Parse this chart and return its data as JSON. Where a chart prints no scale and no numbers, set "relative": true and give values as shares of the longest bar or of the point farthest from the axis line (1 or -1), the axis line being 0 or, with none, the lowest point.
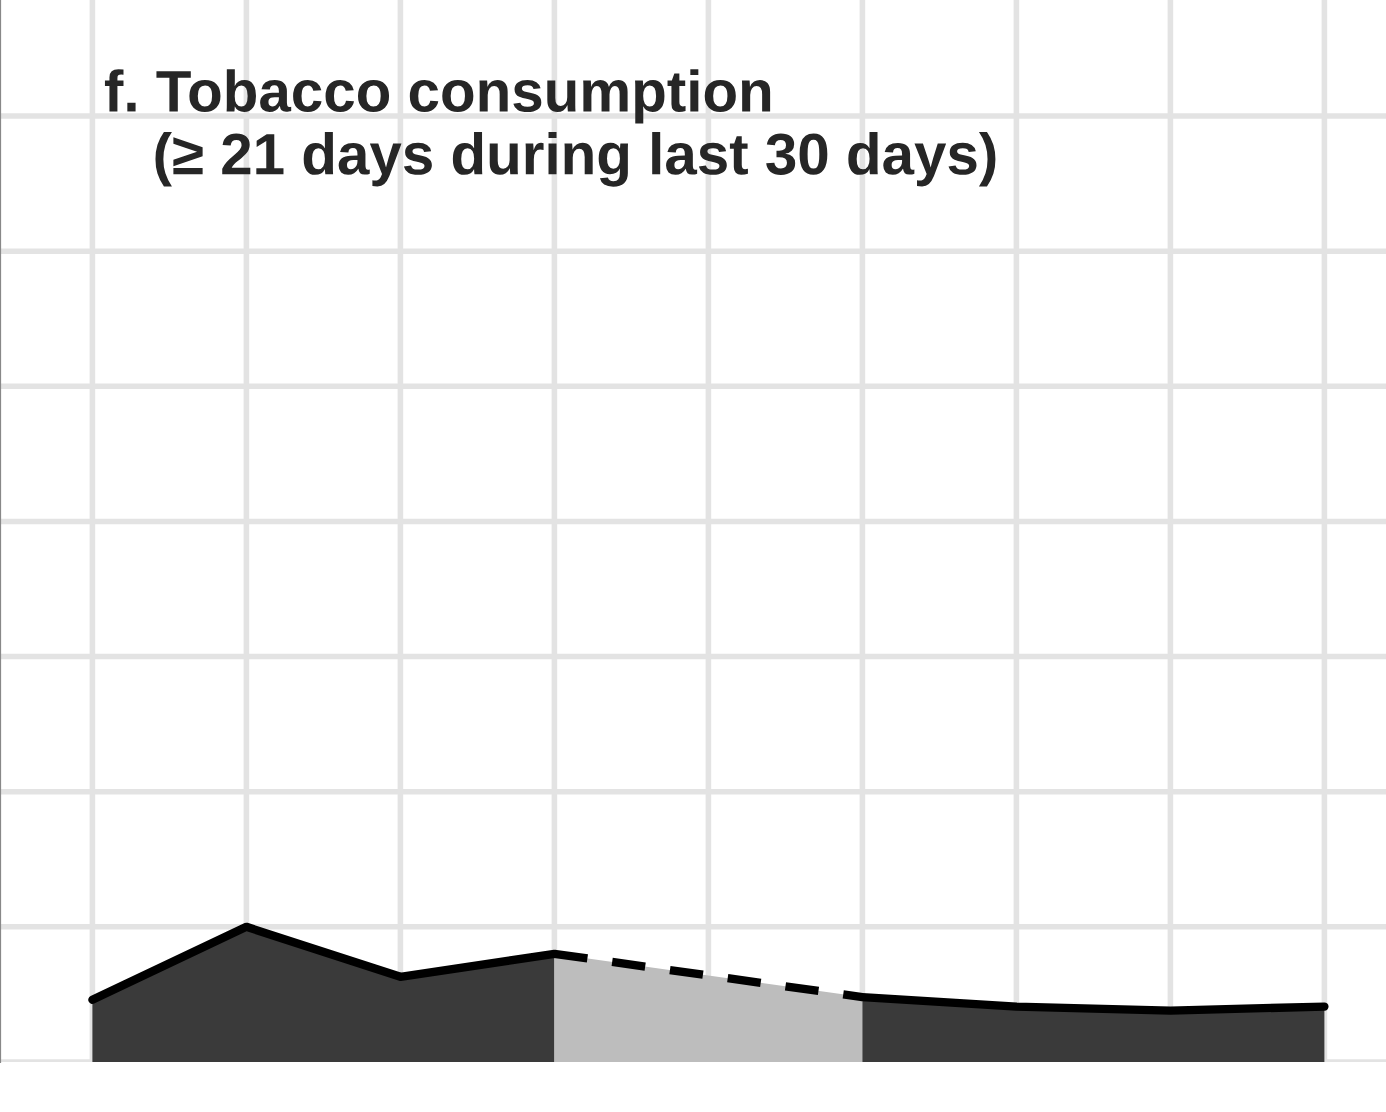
{
  "chart_data": {
    "type": "area",
    "title": "f. Tobacco consumption\n   (≥ 21 days during last 30 days)",
    "relative": true,
    "grid": true,
    "categories": [
      null,
      null,
      null,
      null,
      null,
      null,
      null,
      null,
      null
    ],
    "series": [
      {
        "color": "#3a3a3a",
        "line_style": "solid",
        "values": [
          0.46,
          1,
          0.63,
          0.8,
          null,
          null,
          null,
          null,
          null
        ]
      },
      {
        "color": "#bdbdbd",
        "line_style": "dashed",
        "values": [
          null,
          null,
          null,
          0.8,
          0.64,
          0.48,
          null,
          null,
          null
        ]
      },
      {
        "color": "#3a3a3a",
        "line_style": "solid",
        "values": [
          null,
          null,
          null,
          null,
          null,
          0.48,
          0.41,
          0.38,
          0.41
        ]
      }
    ]
  }
}
